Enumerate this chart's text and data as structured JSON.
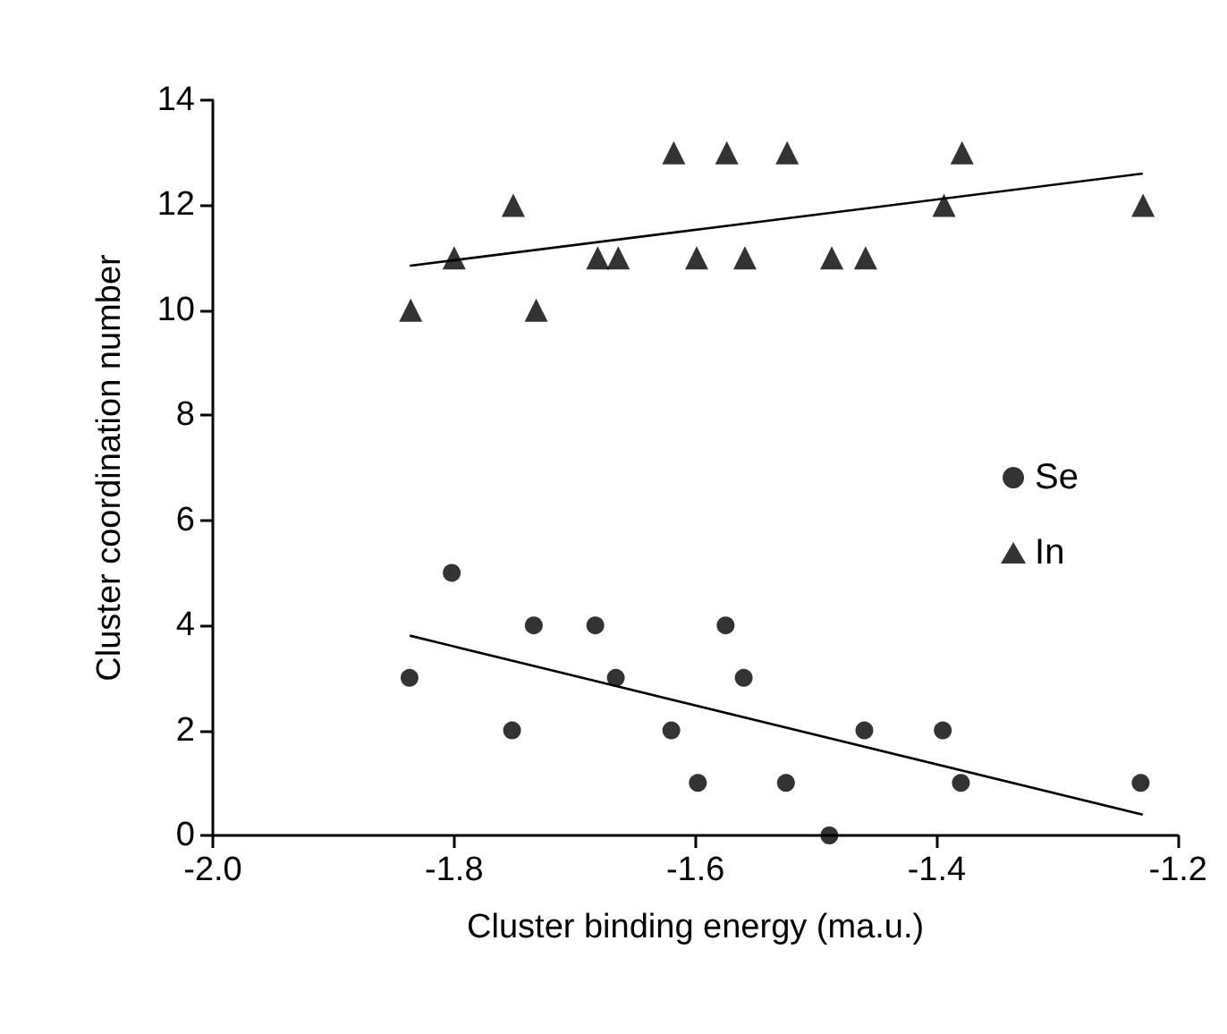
{
  "chart_data": {
    "type": "scatter",
    "xlabel": "Cluster binding energy (ma.u.)",
    "ylabel": "Cluster coordination number",
    "xlim": [
      -2.0,
      -1.2
    ],
    "xticks": [
      {
        "value": -2.0,
        "label": "-2.0"
      },
      -1.8,
      -1.6,
      -1.4,
      {
        "value": -1.2,
        "label": "-1.2"
      }
    ],
    "ylim": [
      0,
      14
    ],
    "yticks": [
      0,
      2,
      4,
      6,
      8,
      10,
      12,
      14
    ],
    "grid": false,
    "legend": "right",
    "series": [
      {
        "name": "Se",
        "color": "#000000",
        "marker": "circle",
        "x": [
          -1.837,
          -1.802,
          -1.752,
          -1.734,
          -1.683,
          -1.666,
          -1.62,
          -1.598,
          -1.575,
          -1.56,
          -1.525,
          -1.489,
          -1.46,
          -1.395,
          -1.38,
          -1.231
        ],
        "values": [
          3,
          5,
          2,
          4,
          4,
          3,
          2,
          1,
          4,
          3,
          1,
          0,
          2,
          2,
          1,
          1
        ]
      },
      {
        "name": "In",
        "color": "#000000",
        "marker": "triangle",
        "x": [
          -1.836,
          -1.8,
          -1.751,
          -1.732,
          -1.681,
          -1.664,
          -1.618,
          -1.599,
          -1.574,
          -1.559,
          -1.524,
          -1.487,
          -1.459,
          -1.394,
          -1.379,
          -1.229
        ],
        "values": [
          10,
          11,
          12,
          10,
          11,
          11,
          13,
          11,
          13,
          11,
          13,
          11,
          11,
          12,
          13,
          12
        ]
      },
      {
        "type": "line",
        "color": "#000000",
        "marker": "none",
        "x": [
          -1.836,
          -1.23
        ],
        "values": [
          3.8,
          0.4
        ]
      },
      {
        "type": "line",
        "color": "#000000",
        "marker": "none",
        "x": [
          -1.836,
          -1.23
        ],
        "values": [
          10.85,
          12.6
        ]
      }
    ]
  }
}
